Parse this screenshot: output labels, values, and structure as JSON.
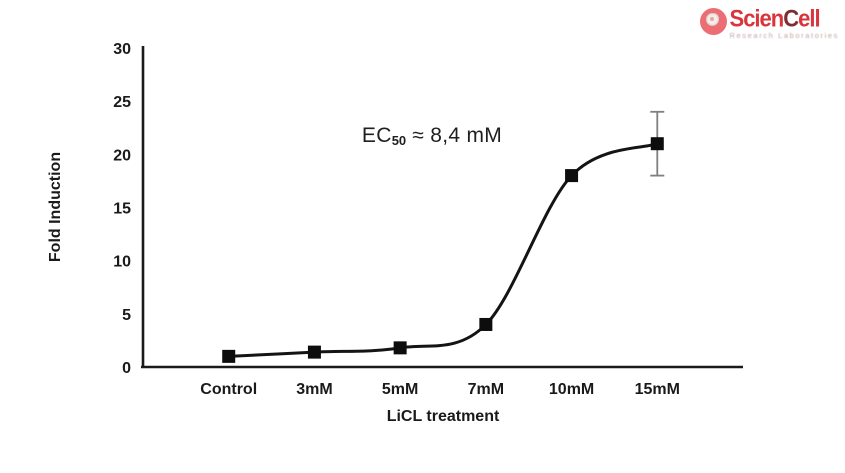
{
  "logo": {
    "brand_prefix": "Scien",
    "brand_c": "C",
    "brand_suffix": "ell",
    "tagline": "Research Laboratories",
    "colors": {
      "circle": "#ec6e75",
      "text_red": "#d9353d",
      "text_dark": "#7c2f33"
    }
  },
  "chart_data": {
    "type": "line",
    "categories": [
      "Control",
      "3mM",
      "5mM",
      "7mM",
      "10mM",
      "15mM"
    ],
    "values": [
      1,
      1.4,
      1.8,
      4,
      18,
      21
    ],
    "error_bars": [
      null,
      null,
      null,
      null,
      null,
      3
    ],
    "title": "",
    "xlabel": "LiCL treatment",
    "ylabel": "Fold Induction",
    "ylim": [
      0,
      30
    ],
    "yticks": [
      0,
      5,
      10,
      15,
      20,
      25,
      30
    ],
    "grid": false,
    "legend": "none",
    "marker": "square",
    "annotation": {
      "prefix": "EC",
      "subscript": "50",
      "rest": " ≈ 8,4 mM"
    },
    "colors": {
      "line": "#141414",
      "marker": "#0d0d0d",
      "axis": "#1a1a1a",
      "error_bar": "#7f7f7f",
      "tick_text": "#1a1a1a"
    }
  }
}
